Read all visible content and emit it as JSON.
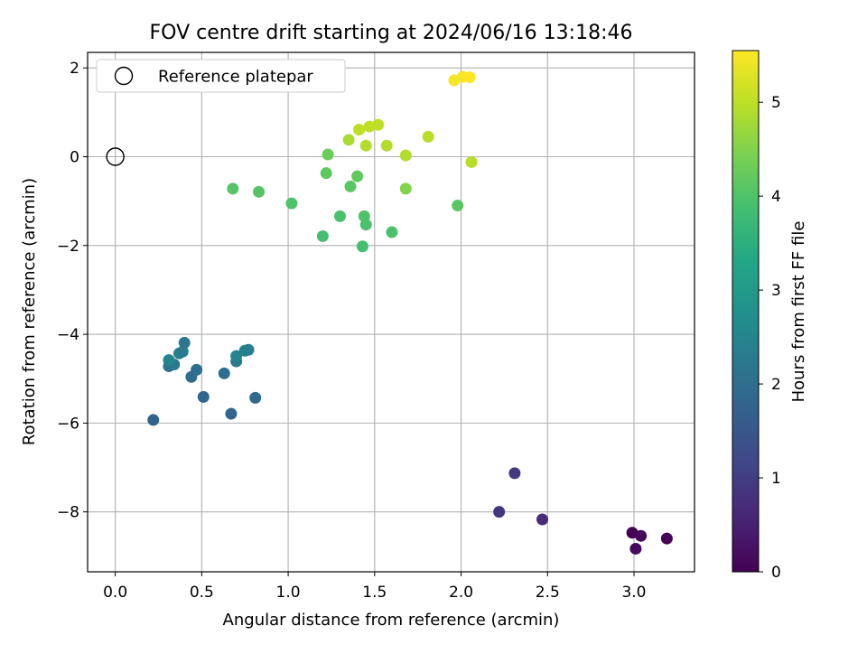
{
  "chart_data": {
    "type": "scatter",
    "title": "FOV centre drift starting at 2024/06/16 13:18:46",
    "xlabel": "Angular distance from reference (arcmin)",
    "ylabel": "Rotation from reference (arcmin)",
    "xlim": [
      -0.16,
      3.35
    ],
    "ylim": [
      -9.35,
      2.35
    ],
    "xticks": [
      0.0,
      0.5,
      1.0,
      1.5,
      2.0,
      2.5,
      3.0
    ],
    "xtick_labels": [
      "0.0",
      "0.5",
      "1.0",
      "1.5",
      "2.0",
      "2.5",
      "3.0"
    ],
    "yticks": [
      2,
      0,
      -2,
      -4,
      -6,
      -8
    ],
    "ytick_labels": [
      "2",
      "0",
      "−2",
      "−4",
      "−6",
      "−8"
    ],
    "grid": true,
    "legend": {
      "position": "top-left",
      "entries": [
        "Reference platepar"
      ]
    },
    "reference_point": {
      "x": 0.0,
      "y": 0.0,
      "label": "Reference platepar"
    },
    "colorbar": {
      "label": "Hours from first FF file",
      "colormap": "viridis",
      "range": [
        0,
        5.55
      ],
      "ticks": [
        0,
        1,
        2,
        3,
        4,
        5
      ],
      "tick_labels": [
        "0",
        "1",
        "2",
        "3",
        "4",
        "5"
      ]
    },
    "points": [
      {
        "x": 2.99,
        "y": -8.47,
        "c": 0.0
      },
      {
        "x": 3.19,
        "y": -8.6,
        "c": 0.05
      },
      {
        "x": 3.04,
        "y": -8.54,
        "c": 0.1
      },
      {
        "x": 3.01,
        "y": -8.83,
        "c": 0.15
      },
      {
        "x": 2.47,
        "y": -8.17,
        "c": 0.7
      },
      {
        "x": 2.31,
        "y": -7.13,
        "c": 0.9
      },
      {
        "x": 2.22,
        "y": -8.0,
        "c": 0.85
      },
      {
        "x": 0.22,
        "y": -5.93,
        "c": 1.75
      },
      {
        "x": 0.67,
        "y": -5.79,
        "c": 1.8
      },
      {
        "x": 0.51,
        "y": -5.41,
        "c": 1.85
      },
      {
        "x": 0.81,
        "y": -5.43,
        "c": 1.9
      },
      {
        "x": 0.44,
        "y": -4.96,
        "c": 1.95
      },
      {
        "x": 0.63,
        "y": -4.88,
        "c": 2.0
      },
      {
        "x": 0.47,
        "y": -4.8,
        "c": 2.05
      },
      {
        "x": 0.31,
        "y": -4.72,
        "c": 2.1
      },
      {
        "x": 0.34,
        "y": -4.68,
        "c": 2.2
      },
      {
        "x": 0.7,
        "y": -4.61,
        "c": 2.25
      },
      {
        "x": 0.31,
        "y": -4.58,
        "c": 2.5
      },
      {
        "x": 0.7,
        "y": -4.49,
        "c": 2.55
      },
      {
        "x": 0.37,
        "y": -4.43,
        "c": 2.35
      },
      {
        "x": 0.39,
        "y": -4.39,
        "c": 2.3
      },
      {
        "x": 0.75,
        "y": -4.37,
        "c": 2.4
      },
      {
        "x": 0.77,
        "y": -4.35,
        "c": 2.35
      },
      {
        "x": 0.4,
        "y": -4.19,
        "c": 2.2
      },
      {
        "x": 1.2,
        "y": -1.79,
        "c": 3.9
      },
      {
        "x": 1.43,
        "y": -2.02,
        "c": 3.9
      },
      {
        "x": 1.6,
        "y": -1.7,
        "c": 3.95
      },
      {
        "x": 1.45,
        "y": -1.53,
        "c": 3.95
      },
      {
        "x": 1.3,
        "y": -1.34,
        "c": 3.95
      },
      {
        "x": 1.44,
        "y": -1.34,
        "c": 4.0
      },
      {
        "x": 1.02,
        "y": -1.05,
        "c": 4.0
      },
      {
        "x": 1.98,
        "y": -1.1,
        "c": 4.1
      },
      {
        "x": 0.68,
        "y": -0.72,
        "c": 4.05
      },
      {
        "x": 0.83,
        "y": -0.79,
        "c": 4.05
      },
      {
        "x": 1.36,
        "y": -0.67,
        "c": 4.1
      },
      {
        "x": 1.4,
        "y": -0.44,
        "c": 4.2
      },
      {
        "x": 1.22,
        "y": -0.37,
        "c": 4.15
      },
      {
        "x": 1.68,
        "y": -0.72,
        "c": 4.5
      },
      {
        "x": 1.23,
        "y": 0.05,
        "c": 4.3
      },
      {
        "x": 1.45,
        "y": 0.25,
        "c": 4.9
      },
      {
        "x": 1.57,
        "y": 0.25,
        "c": 4.9
      },
      {
        "x": 1.35,
        "y": 0.38,
        "c": 4.85
      },
      {
        "x": 1.68,
        "y": 0.03,
        "c": 4.9
      },
      {
        "x": 2.06,
        "y": -0.12,
        "c": 4.95
      },
      {
        "x": 1.81,
        "y": 0.45,
        "c": 4.95
      },
      {
        "x": 1.41,
        "y": 0.61,
        "c": 5.0
      },
      {
        "x": 1.47,
        "y": 0.68,
        "c": 5.0
      },
      {
        "x": 1.52,
        "y": 0.72,
        "c": 5.0
      },
      {
        "x": 1.96,
        "y": 1.72,
        "c": 5.5
      },
      {
        "x": 2.01,
        "y": 1.8,
        "c": 5.5
      },
      {
        "x": 2.05,
        "y": 1.79,
        "c": 5.55
      }
    ]
  }
}
